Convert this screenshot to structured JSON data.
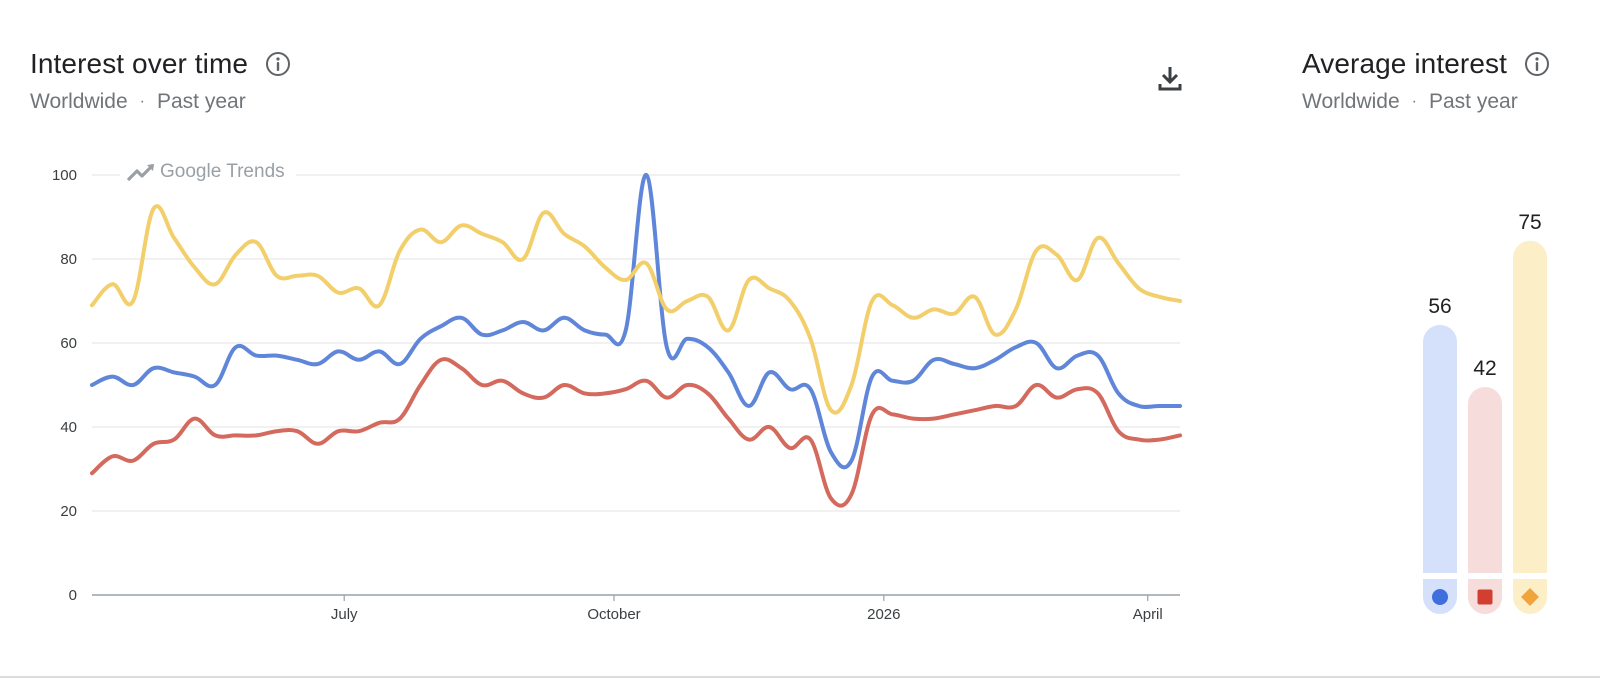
{
  "interest_over_time": {
    "title": "Interest over time",
    "region": "Worldwide",
    "separator": "·",
    "period": "Past year",
    "watermark": "Google Trends"
  },
  "average_interest": {
    "title": "Average interest",
    "region": "Worldwide",
    "separator": "·",
    "period": "Past year"
  },
  "colors": {
    "blue": "#5f86d9",
    "red": "#d46a5e",
    "yellow": "#f2cf6b",
    "blue_light": "#d5e1fb",
    "red_light": "#f6dcda",
    "yellow_light": "#fcefc8",
    "blue_marker": "#3f6fdc",
    "red_marker": "#d23f31",
    "yellow_marker": "#f2a43c",
    "grid": "#e3e3e3",
    "axis": "#9aa0a6"
  },
  "chart_data": [
    {
      "type": "line",
      "title": "Interest over time",
      "x_start": "2025-04-06",
      "x_end": "2026-04-12",
      "ylim": [
        0,
        100
      ],
      "y_ticks": [
        0,
        20,
        40,
        60,
        80,
        100
      ],
      "x_ticks": [
        {
          "label": "July",
          "date": "2025-07-01"
        },
        {
          "label": "October",
          "date": "2025-10-01"
        },
        {
          "label": "2026",
          "date": "2026-01-01"
        },
        {
          "label": "April",
          "date": "2026-04-01"
        }
      ],
      "grid": true,
      "series": [
        {
          "color": "#5f86d9",
          "marker": "circle",
          "x": [
            "2025-04-06",
            "2025-04-13",
            "2025-04-20",
            "2025-04-27",
            "2025-05-04",
            "2025-05-11",
            "2025-05-18",
            "2025-05-25",
            "2025-06-01",
            "2025-06-08",
            "2025-06-15",
            "2025-06-22",
            "2025-06-29",
            "2025-07-06",
            "2025-07-13",
            "2025-07-20",
            "2025-07-27",
            "2025-08-03",
            "2025-08-10",
            "2025-08-17",
            "2025-08-24",
            "2025-08-31",
            "2025-09-07",
            "2025-09-14",
            "2025-09-21",
            "2025-09-28",
            "2025-10-05",
            "2025-10-12",
            "2025-10-19",
            "2025-10-26",
            "2025-11-02",
            "2025-11-09",
            "2025-11-16",
            "2025-11-23",
            "2025-11-30",
            "2025-12-07",
            "2025-12-14",
            "2025-12-21",
            "2025-12-28",
            "2026-01-04",
            "2026-01-11",
            "2026-01-18",
            "2026-01-25",
            "2026-02-01",
            "2026-02-08",
            "2026-02-15",
            "2026-02-22",
            "2026-03-01",
            "2026-03-08",
            "2026-03-15",
            "2026-03-22",
            "2026-03-29",
            "2026-04-05",
            "2026-04-12"
          ],
          "y": [
            50,
            52,
            50,
            54,
            53,
            52,
            50,
            59,
            57,
            57,
            56,
            55,
            58,
            56,
            58,
            55,
            61,
            64,
            66,
            62,
            63,
            65,
            63,
            66,
            63,
            62,
            63,
            100,
            59,
            61,
            59,
            53,
            45,
            53,
            49,
            49,
            34,
            32,
            52,
            51,
            51,
            56,
            55,
            54,
            56,
            59,
            60,
            54,
            57,
            57,
            48,
            45,
            45,
            45
          ]
        },
        {
          "color": "#d46a5e",
          "marker": "square",
          "x": [
            "2025-04-06",
            "2025-04-13",
            "2025-04-20",
            "2025-04-27",
            "2025-05-04",
            "2025-05-11",
            "2025-05-18",
            "2025-05-25",
            "2025-06-01",
            "2025-06-08",
            "2025-06-15",
            "2025-06-22",
            "2025-06-29",
            "2025-07-06",
            "2025-07-13",
            "2025-07-20",
            "2025-07-27",
            "2025-08-03",
            "2025-08-10",
            "2025-08-17",
            "2025-08-24",
            "2025-08-31",
            "2025-09-07",
            "2025-09-14",
            "2025-09-21",
            "2025-09-28",
            "2025-10-05",
            "2025-10-12",
            "2025-10-19",
            "2025-10-26",
            "2025-11-02",
            "2025-11-09",
            "2025-11-16",
            "2025-11-23",
            "2025-11-30",
            "2025-12-07",
            "2025-12-14",
            "2025-12-21",
            "2025-12-28",
            "2026-01-04",
            "2026-01-11",
            "2026-01-18",
            "2026-01-25",
            "2026-02-01",
            "2026-02-08",
            "2026-02-15",
            "2026-02-22",
            "2026-03-01",
            "2026-03-08",
            "2026-03-15",
            "2026-03-22",
            "2026-03-29",
            "2026-04-05",
            "2026-04-12"
          ],
          "y": [
            29,
            33,
            32,
            36,
            37,
            42,
            38,
            38,
            38,
            39,
            39,
            36,
            39,
            39,
            41,
            42,
            50,
            56,
            54,
            50,
            51,
            48,
            47,
            50,
            48,
            48,
            49,
            51,
            47,
            50,
            48,
            42,
            37,
            40,
            35,
            37,
            23,
            24,
            43,
            43,
            42,
            42,
            43,
            44,
            45,
            45,
            50,
            47,
            49,
            48,
            39,
            37,
            37,
            38
          ]
        },
        {
          "color": "#f2cf6b",
          "marker": "diamond",
          "x": [
            "2025-04-06",
            "2025-04-13",
            "2025-04-20",
            "2025-04-27",
            "2025-05-04",
            "2025-05-11",
            "2025-05-18",
            "2025-05-25",
            "2025-06-01",
            "2025-06-08",
            "2025-06-15",
            "2025-06-22",
            "2025-06-29",
            "2025-07-06",
            "2025-07-13",
            "2025-07-20",
            "2025-07-27",
            "2025-08-03",
            "2025-08-10",
            "2025-08-17",
            "2025-08-24",
            "2025-08-31",
            "2025-09-07",
            "2025-09-14",
            "2025-09-21",
            "2025-09-28",
            "2025-10-05",
            "2025-10-12",
            "2025-10-19",
            "2025-10-26",
            "2025-11-02",
            "2025-11-09",
            "2025-11-16",
            "2025-11-23",
            "2025-11-30",
            "2025-12-07",
            "2025-12-14",
            "2025-12-21",
            "2025-12-28",
            "2026-01-04",
            "2026-01-11",
            "2026-01-18",
            "2026-01-25",
            "2026-02-01",
            "2026-02-08",
            "2026-02-15",
            "2026-02-22",
            "2026-03-01",
            "2026-03-08",
            "2026-03-15",
            "2026-03-22",
            "2026-03-29",
            "2026-04-05",
            "2026-04-12"
          ],
          "y": [
            69,
            74,
            70,
            92,
            85,
            78,
            74,
            81,
            84,
            76,
            76,
            76,
            72,
            73,
            69,
            82,
            87,
            84,
            88,
            86,
            84,
            80,
            91,
            86,
            83,
            78,
            75,
            79,
            68,
            70,
            71,
            63,
            75,
            73,
            70,
            61,
            44,
            50,
            70,
            69,
            66,
            68,
            67,
            71,
            62,
            68,
            82,
            81,
            75,
            85,
            79,
            73,
            71,
            70
          ]
        }
      ]
    },
    {
      "type": "bar",
      "title": "Average interest",
      "ylim": [
        0,
        100
      ],
      "series": [
        {
          "color": "#d5e1fb",
          "marker": "circle",
          "marker_color": "#3f6fdc",
          "value": 56
        },
        {
          "color": "#f6dcda",
          "marker": "square",
          "marker_color": "#d23f31",
          "value": 42
        },
        {
          "color": "#fcefc8",
          "marker": "diamond",
          "marker_color": "#f2a43c",
          "value": 75
        }
      ]
    }
  ]
}
